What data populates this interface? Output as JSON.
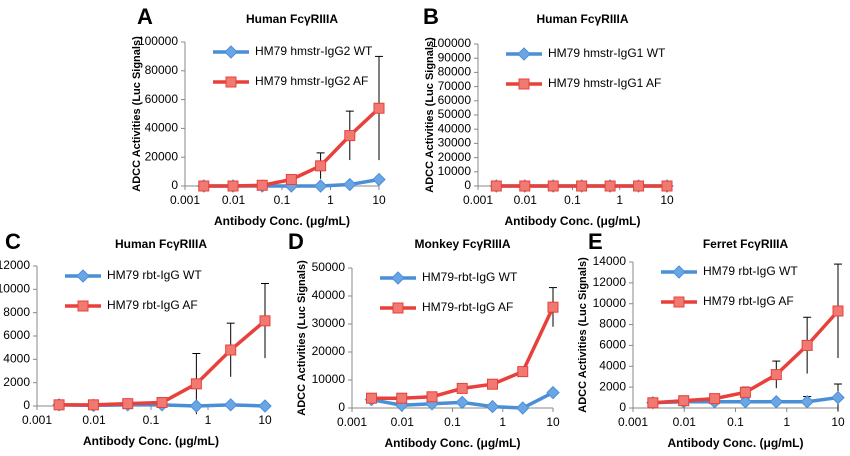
{
  "chart_data": [
    {
      "type": "line",
      "panel": "A",
      "title": "Human FcγRIIIA",
      "xlabel": "Antibody Conc. (μg/mL)",
      "ylabel": "ADCC Activities (Luc Signals)",
      "log_x": true,
      "x": [
        0.00244,
        0.00977,
        0.0391,
        0.156,
        0.625,
        2.5,
        10
      ],
      "xlim": [
        0.001,
        10
      ],
      "xticks": [
        0.001,
        0.01,
        0.1,
        1,
        10
      ],
      "ylim": [
        0,
        100000
      ],
      "yticks": [
        0,
        20000,
        40000,
        60000,
        80000,
        100000
      ],
      "legend": "upper left",
      "series": [
        {
          "name": "HM79 hmstr-IgG2 WT",
          "color": "#4a8fd6",
          "values": [
            0,
            0,
            0,
            0,
            0,
            1000,
            4500
          ],
          "errors": [
            0,
            0,
            0,
            0,
            0,
            500,
            1500
          ]
        },
        {
          "name": "HM79 hmstr-IgG2 AF",
          "color": "#e8403a",
          "values": [
            0,
            0,
            500,
            4500,
            14000,
            35000,
            54000
          ],
          "errors": [
            0,
            0,
            0,
            1000,
            9000,
            17000,
            36000
          ]
        }
      ]
    },
    {
      "type": "line",
      "panel": "B",
      "title": "Human FcγRIIIA",
      "xlabel": "Antibody Conc. (μg/mL)",
      "ylabel": "ADCC Activities (Luc Signals)",
      "log_x": true,
      "x": [
        0.00244,
        0.00977,
        0.0391,
        0.156,
        0.625,
        2.5,
        10
      ],
      "xlim": [
        0.001,
        10
      ],
      "xticks": [
        0.001,
        0.01,
        0.1,
        1,
        10
      ],
      "ylim": [
        0,
        100000
      ],
      "yticks": [
        0,
        10000,
        20000,
        30000,
        40000,
        50000,
        60000,
        70000,
        80000,
        90000,
        100000
      ],
      "legend": "upper left",
      "series": [
        {
          "name": "HM79 hmstr-IgG1 WT",
          "color": "#4a8fd6",
          "values": [
            0,
            0,
            0,
            0,
            0,
            0,
            0
          ],
          "errors": [
            0,
            0,
            0,
            0,
            0,
            0,
            0
          ]
        },
        {
          "name": "HM79 hmstr-IgG1 AF",
          "color": "#e8403a",
          "values": [
            0,
            0,
            0,
            0,
            0,
            0,
            0
          ],
          "errors": [
            0,
            0,
            0,
            0,
            0,
            0,
            0
          ]
        }
      ]
    },
    {
      "type": "line",
      "panel": "C",
      "title": "Human FcγRIIIA",
      "xlabel": "Antibody Conc. (μg/mL)",
      "ylabel": "ADCC Activities (Luc Signals)",
      "log_x": true,
      "x": [
        0.00244,
        0.00977,
        0.0391,
        0.156,
        0.625,
        2.5,
        10
      ],
      "xlim": [
        0.001,
        10
      ],
      "xticks": [
        0.001,
        0.01,
        0.1,
        1,
        10
      ],
      "ylim": [
        0,
        12000
      ],
      "yticks": [
        0,
        2000,
        4000,
        6000,
        8000,
        10000,
        12000
      ],
      "legend": "upper left",
      "series": [
        {
          "name": "HM79 rbt-IgG WT",
          "color": "#4a8fd6",
          "values": [
            100,
            50,
            100,
            100,
            0,
            100,
            0
          ],
          "errors": [
            0,
            0,
            0,
            0,
            0,
            0,
            0
          ]
        },
        {
          "name": "HM79 rbt-IgG AF",
          "color": "#e8403a",
          "values": [
            100,
            100,
            200,
            300,
            1900,
            4800,
            7300
          ],
          "errors": [
            200,
            0,
            0,
            200,
            2600,
            2300,
            3200
          ]
        }
      ]
    },
    {
      "type": "line",
      "panel": "D",
      "title": "Monkey FcγRIIIA",
      "xlabel": "Antibody Conc. (μg/mL)",
      "ylabel": "ADCC Activities (Luc Signals)",
      "log_x": true,
      "x": [
        0.00244,
        0.00977,
        0.0391,
        0.156,
        0.625,
        2.5,
        10
      ],
      "xlim": [
        0.001,
        10
      ],
      "xticks": [
        0.001,
        0.01,
        0.1,
        1,
        10
      ],
      "ylim": [
        0,
        50000
      ],
      "yticks": [
        0,
        10000,
        20000,
        30000,
        40000,
        50000
      ],
      "legend": "upper left",
      "series": [
        {
          "name": "HM79-rbt-IgG WT",
          "color": "#4a8fd6",
          "values": [
            3000,
            1000,
            1500,
            2000,
            500,
            0,
            5500
          ],
          "errors": [
            0,
            0,
            0,
            0,
            0,
            0,
            500
          ]
        },
        {
          "name": "HM79-rbt-IgG AF",
          "color": "#e8403a",
          "values": [
            3500,
            3500,
            4000,
            7000,
            8500,
            13000,
            36000
          ],
          "errors": [
            0,
            0,
            0,
            0,
            0,
            1500,
            7000
          ]
        }
      ]
    },
    {
      "type": "line",
      "panel": "E",
      "title": "Ferret FcγRIIIA",
      "xlabel": "Antibody Conc. (μg/mL)",
      "ylabel": "ADCC Activities (Luc Signals)",
      "log_x": true,
      "x": [
        0.00244,
        0.00977,
        0.0391,
        0.156,
        0.625,
        2.5,
        10
      ],
      "xlim": [
        0.001,
        10
      ],
      "xticks": [
        0.001,
        0.01,
        0.1,
        1,
        10
      ],
      "ylim": [
        0,
        14000
      ],
      "yticks": [
        0,
        2000,
        4000,
        6000,
        8000,
        10000,
        12000,
        14000
      ],
      "legend": "upper left",
      "series": [
        {
          "name": "HM79 rbt-IgG WT",
          "color": "#4a8fd6",
          "values": [
            500,
            600,
            600,
            600,
            600,
            600,
            1000
          ],
          "errors": [
            0,
            0,
            0,
            300,
            200,
            500,
            1300
          ]
        },
        {
          "name": "HM79 rbt-IgG AF",
          "color": "#e8403a",
          "values": [
            500,
            700,
            900,
            1500,
            3200,
            6000,
            9300
          ],
          "errors": [
            0,
            0,
            0,
            500,
            1300,
            2700,
            4500
          ]
        }
      ]
    }
  ]
}
